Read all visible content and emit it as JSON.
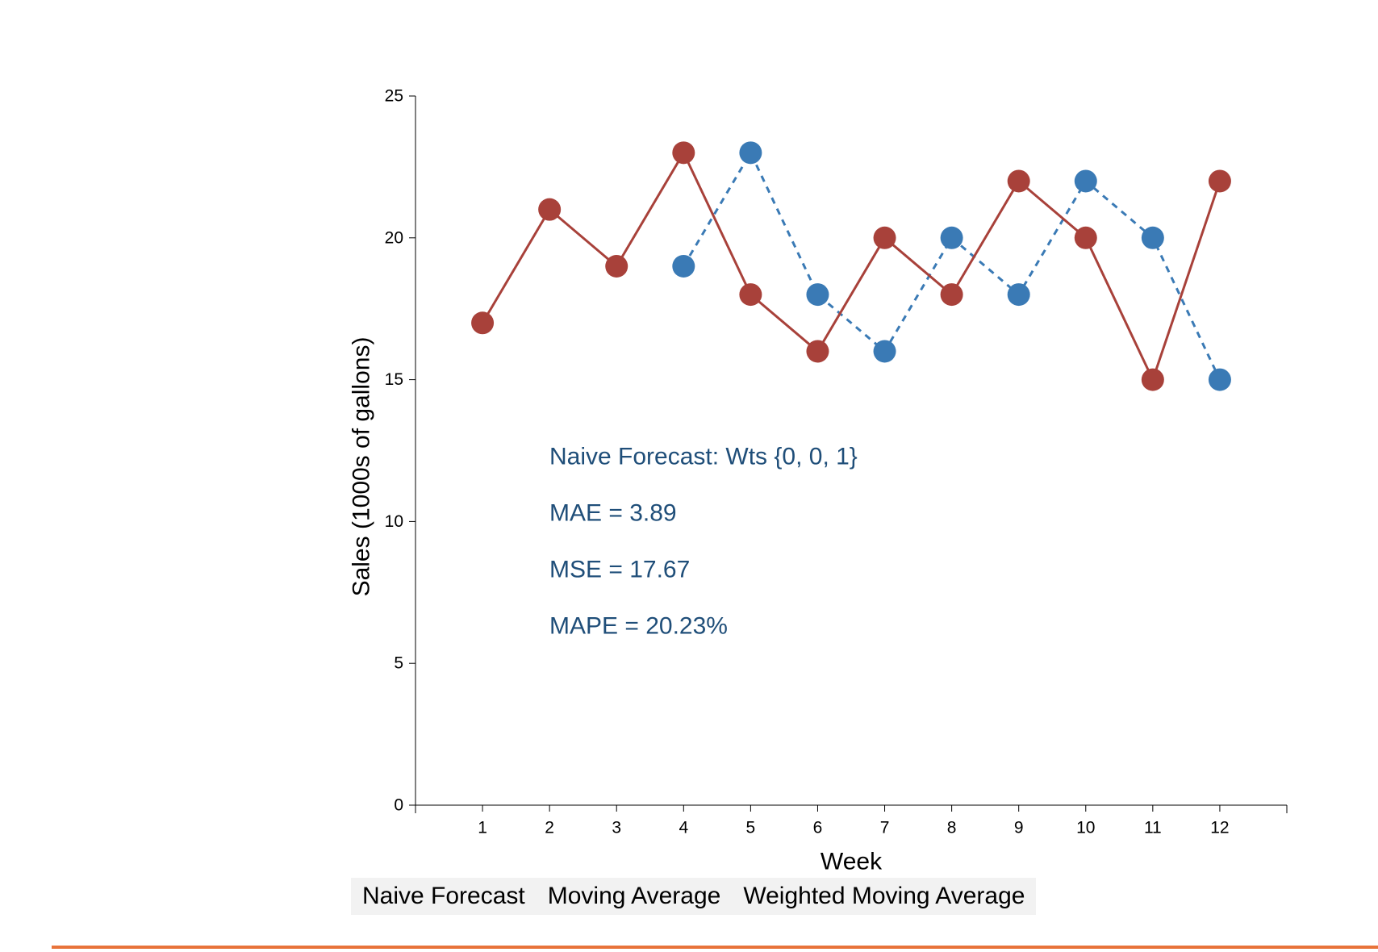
{
  "chart_data": {
    "type": "line",
    "xlabel": "Week",
    "ylabel": "Sales (1000s of gallons)",
    "xlim": [
      0,
      13
    ],
    "ylim": [
      0,
      25
    ],
    "x_ticks": [
      1,
      2,
      3,
      4,
      5,
      6,
      7,
      8,
      9,
      10,
      11,
      12
    ],
    "y_ticks": [
      0,
      5,
      10,
      15,
      20,
      25
    ],
    "grid": false,
    "series": [
      {
        "role": "actual",
        "style": "solid",
        "color": "#a8413a",
        "x": [
          1,
          2,
          3,
          4,
          5,
          6,
          7,
          8,
          9,
          10,
          11,
          12
        ],
        "values": [
          17,
          21,
          19,
          23,
          18,
          16,
          20,
          18,
          22,
          20,
          15,
          22
        ]
      },
      {
        "role": "forecast",
        "style": "dashed",
        "color": "#3a7ab5",
        "x": [
          4,
          5,
          6,
          7,
          8,
          9,
          10,
          11,
          12
        ],
        "values": [
          19,
          23,
          18,
          16,
          20,
          18,
          22,
          20,
          15
        ]
      }
    ],
    "annotations": [
      "Naive Forecast: Wts {0, 0, 1}",
      "MAE = 3.89",
      "MSE = 17.67",
      "MAPE = 20.23%"
    ],
    "annotation_color": "#1f4e79"
  },
  "buttons": [
    {
      "label": "Naive Forecast"
    },
    {
      "label": "Moving Average"
    },
    {
      "label": "Weighted Moving Average"
    }
  ],
  "divider_color": "#e8733a"
}
